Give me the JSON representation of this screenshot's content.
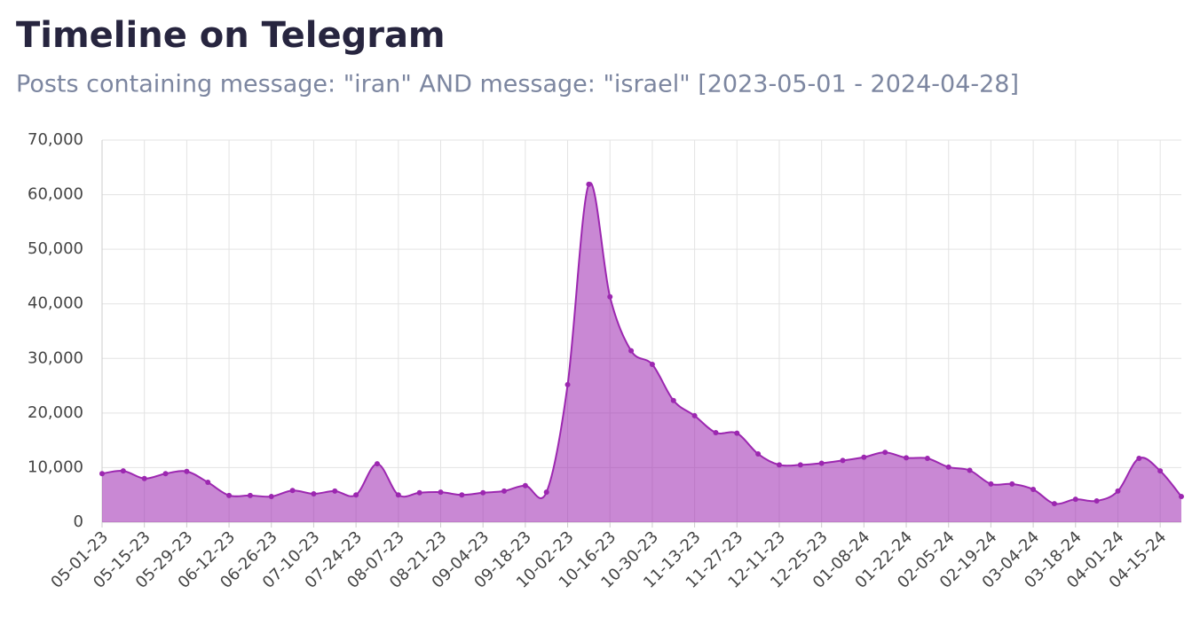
{
  "chart_data": {
    "type": "area",
    "title": "Timeline on Telegram",
    "subtitle": "Posts containing message: \"iran\" AND message: \"israel\" [2023-05-01 - 2024-04-28]",
    "categories": [
      "05-01-23",
      null,
      "05-15-23",
      null,
      "05-29-23",
      null,
      "06-12-23",
      null,
      "06-26-23",
      null,
      "07-10-23",
      null,
      "07-24-23",
      null,
      "08-07-23",
      null,
      "08-21-23",
      null,
      "09-04-23",
      null,
      "09-18-23",
      null,
      "10-02-23",
      null,
      "10-16-23",
      null,
      "10-30-23",
      null,
      "11-13-23",
      null,
      "11-27-23",
      null,
      "12-11-23",
      null,
      "12-25-23",
      null,
      "01-08-24",
      null,
      "01-22-24",
      null,
      "02-05-24",
      null,
      "02-19-24",
      null,
      "03-04-24",
      null,
      "03-18-24",
      null,
      "04-01-24",
      null,
      "04-15-24",
      null
    ],
    "values": [
      8900,
      9400,
      8000,
      8900,
      9300,
      7300,
      4900,
      4900,
      4700,
      5800,
      5200,
      5700,
      5000,
      10700,
      5000,
      5400,
      5500,
      5000,
      5400,
      5700,
      6700,
      5500,
      25200,
      61900,
      41300,
      31400,
      28900,
      22300,
      19500,
      16400,
      16300,
      12500,
      10500,
      10500,
      10800,
      11300,
      11900,
      12800,
      11800,
      11700,
      10100,
      9500,
      7000,
      7000,
      6000,
      3400,
      4200,
      3900,
      5700,
      11700,
      9400,
      4700
    ],
    "color": "#9c27b0",
    "ylim": [
      0,
      70000
    ],
    "yticks": [
      0,
      {
        "value": 10000,
        "label": "10,000"
      },
      {
        "value": 20000,
        "label": "20,000"
      },
      {
        "value": 30000,
        "label": "30,000"
      },
      {
        "value": 40000,
        "label": "40,000"
      },
      {
        "value": 50000,
        "label": "50,000"
      },
      {
        "value": 60000,
        "label": "60,000"
      },
      {
        "value": 70000,
        "label": "70,000"
      }
    ],
    "grid": true
  }
}
